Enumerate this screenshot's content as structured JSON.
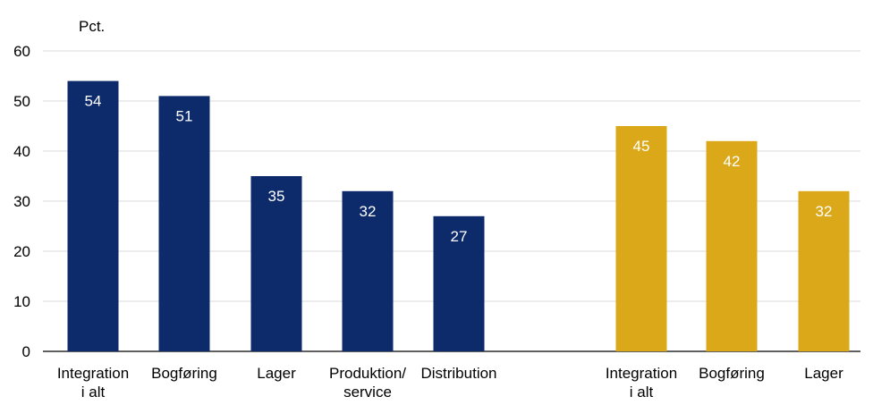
{
  "chart_data": {
    "type": "bar",
    "ylabel": "Pct.",
    "ylim": [
      0,
      60
    ],
    "yticks": [
      0,
      10,
      20,
      30,
      40,
      50,
      60
    ],
    "grid": true,
    "groups": [
      {
        "color": "#0d2b6b",
        "categories": [
          [
            "Integration",
            "i alt"
          ],
          [
            "Bogføring"
          ],
          [
            "Lager"
          ],
          [
            "Produktion/",
            "service"
          ],
          [
            "Distribution"
          ]
        ],
        "values": [
          54,
          51,
          35,
          32,
          27
        ],
        "labels": [
          "54",
          "51",
          "35",
          "32",
          "27"
        ]
      },
      {
        "color": "#dba81a",
        "categories": [
          [
            "Integration",
            "i alt"
          ],
          [
            "Bogføring"
          ],
          [
            "Lager"
          ]
        ],
        "values": [
          45,
          42,
          32
        ],
        "labels": [
          "45",
          "42",
          "32"
        ]
      }
    ]
  }
}
